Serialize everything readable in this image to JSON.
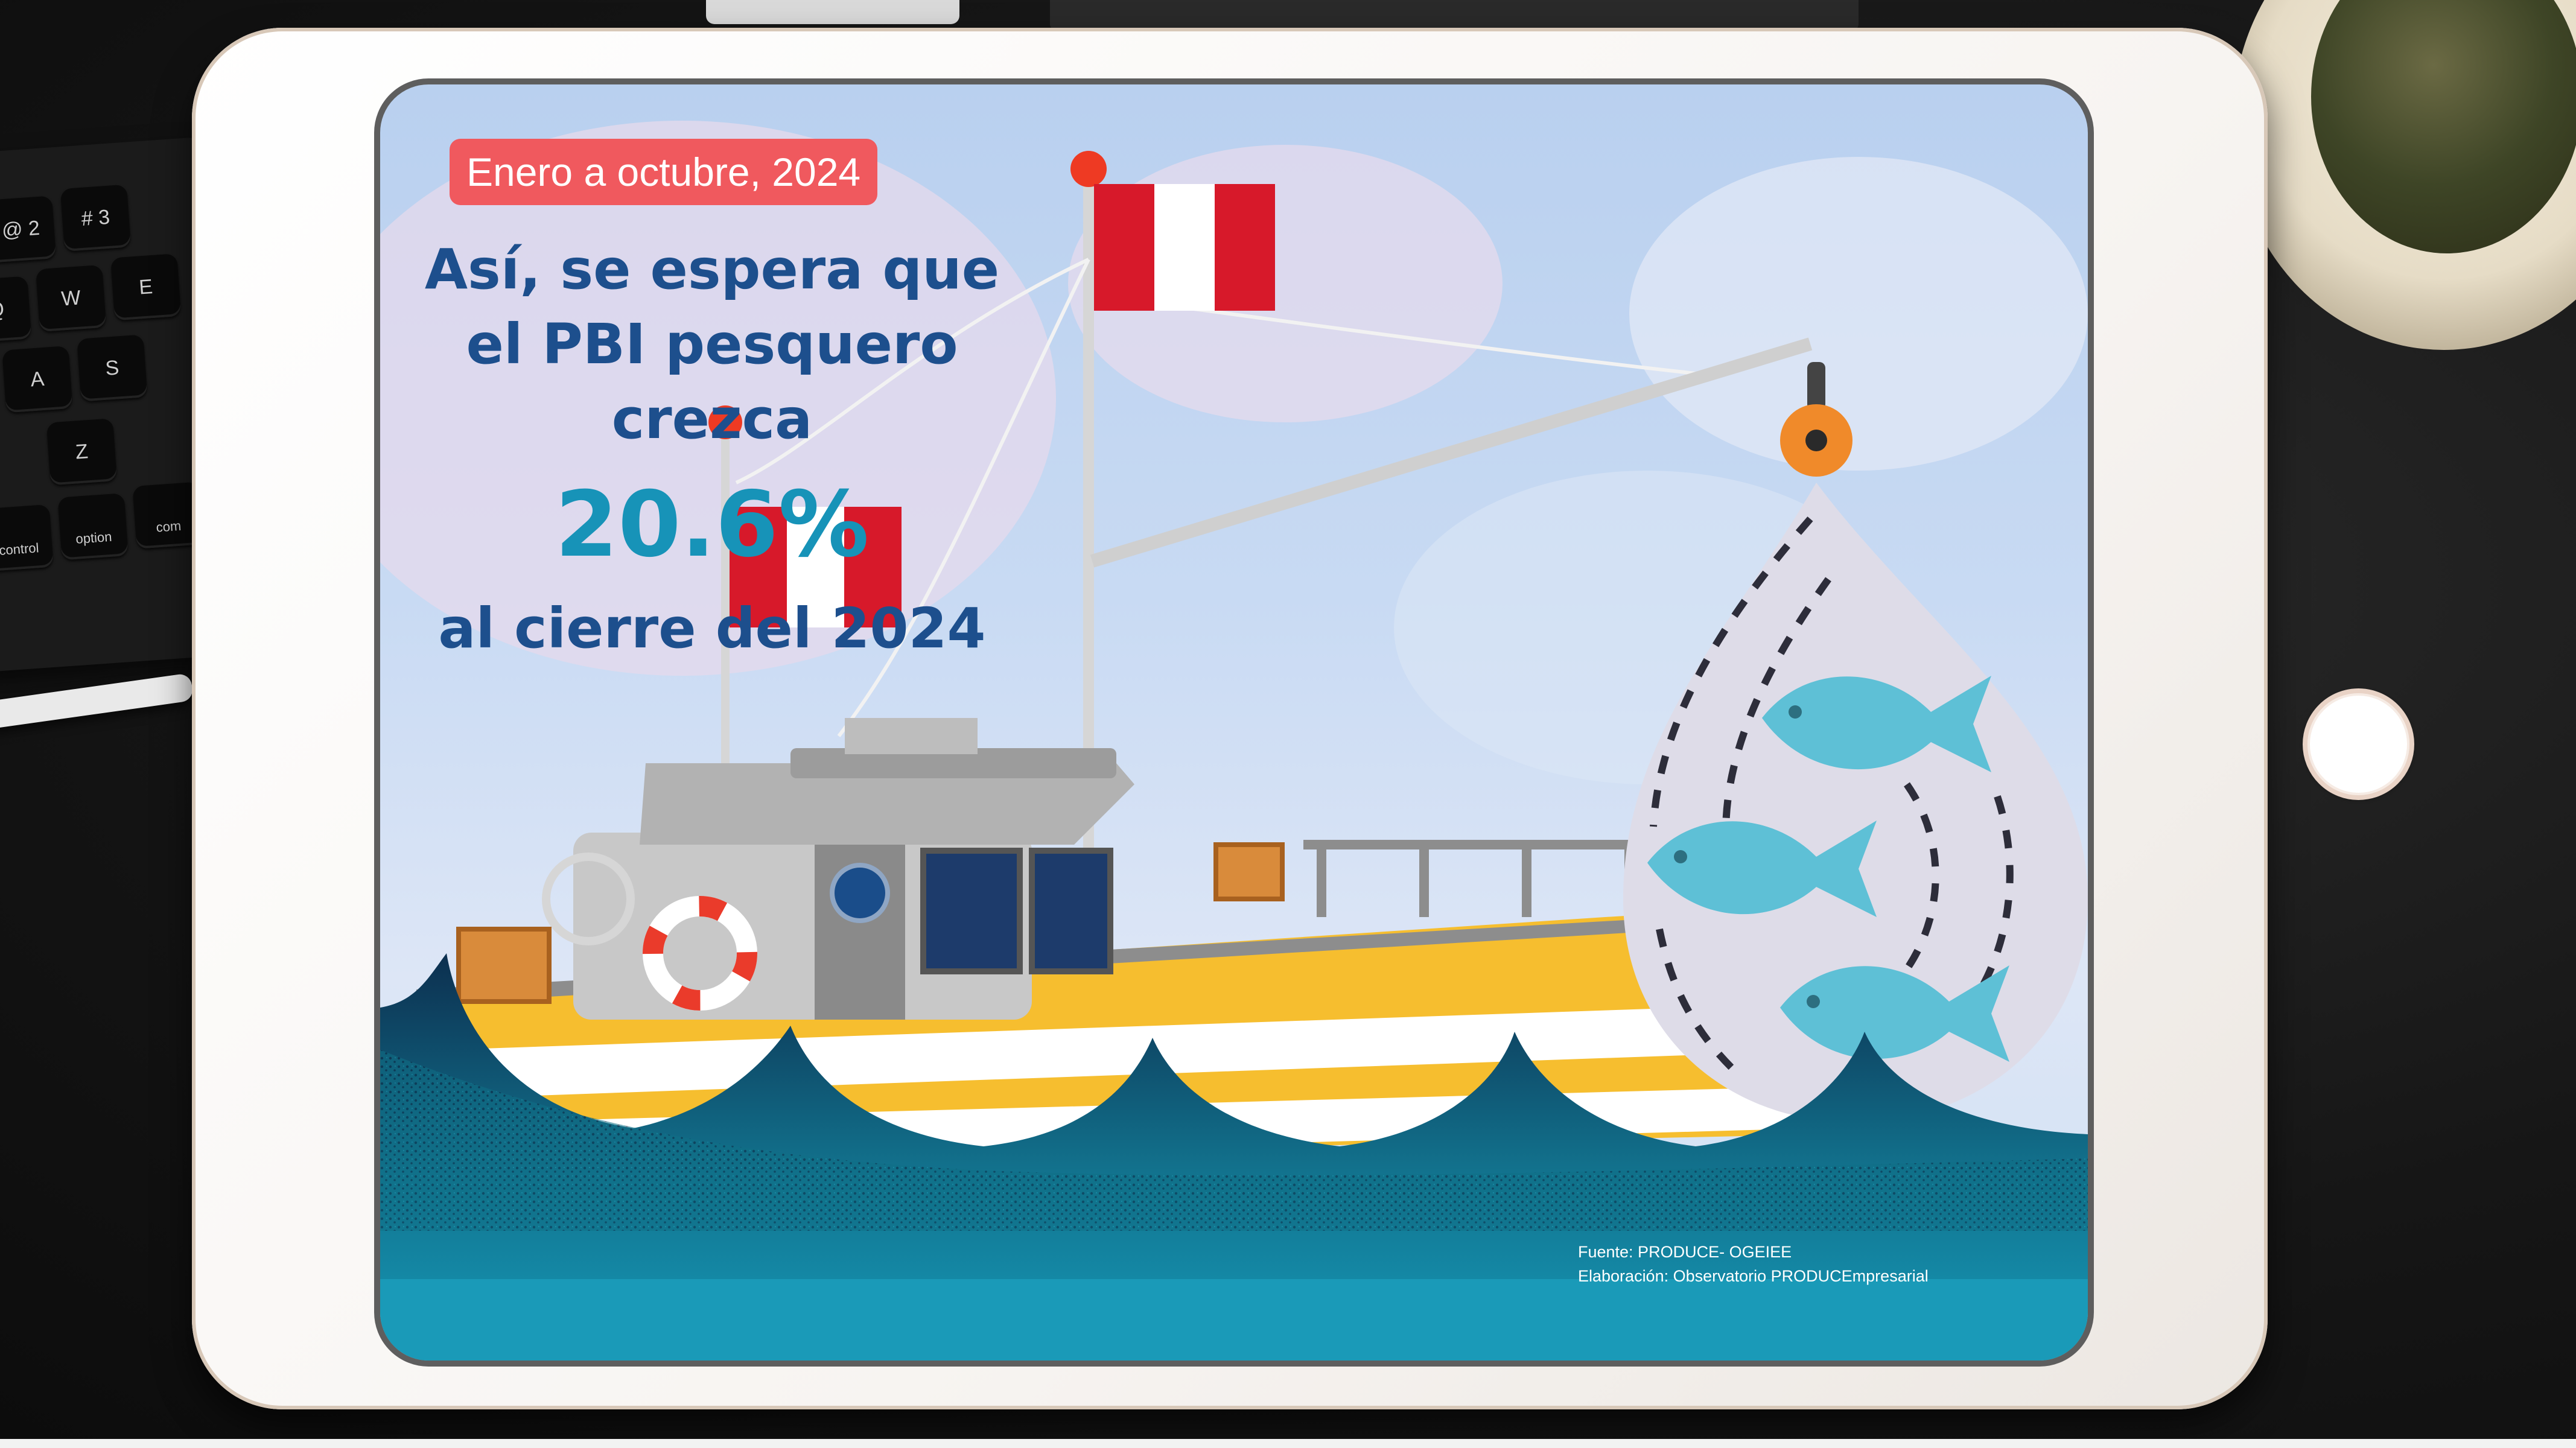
{
  "infographic": {
    "date_badge": "Enero a octubre, 2024",
    "headline": "Así, se espera que el PBI pesquero crezca",
    "growth_percent": "20.6%",
    "closing_line": "al cierre del 2024",
    "source": "Fuente: PRODUCE- OGEIEE",
    "elaboration": "Elaboración: Observatorio PRODUCEmpresarial"
  },
  "keyboard": {
    "keys": [
      "@ 2",
      "# 3",
      "Q",
      "W",
      "E",
      "A",
      "S",
      "Z",
      "control",
      "option",
      "com"
    ]
  },
  "colors": {
    "badge": "#f0595e",
    "headline": "#1d4f8d",
    "percent": "#1793b8",
    "boat_hull": "#f6be2f",
    "sea": "#13889f",
    "fish": "#5ec0d6",
    "flag_red": "#d7192a"
  },
  "icons": {
    "camera": "front-camera-icon",
    "home": "home-button-icon",
    "flag": "peru-flag-icon",
    "fish": "fish-icon",
    "lifebuoy": "lifebuoy-icon",
    "pulley": "pulley-icon"
  }
}
